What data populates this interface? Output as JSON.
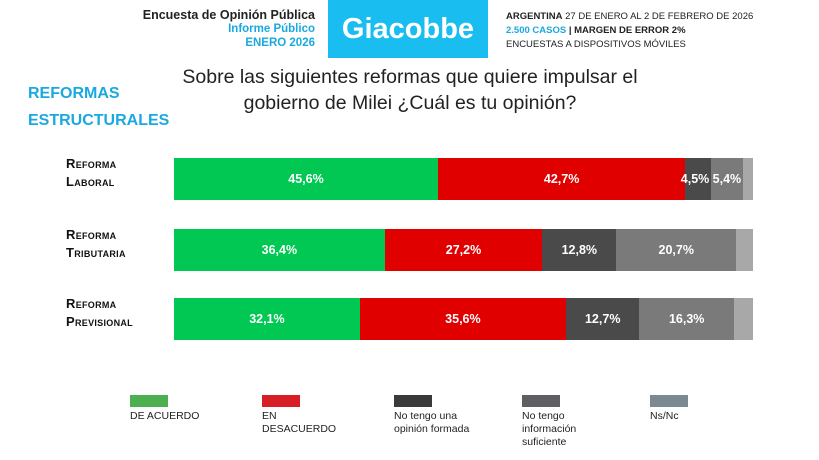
{
  "header": {
    "left": [
      "Encuesta de Opinión Pública",
      "Informe Público",
      "ENERO 2026"
    ],
    "logo": "Giacobbe",
    "right": {
      "country": "ARGENTINA",
      "dates": "27 DE ENERO AL 2 DE FEBRERO DE 2026",
      "cases": "2.500 CASOS",
      "sep": " | ",
      "margin": "MARGEN DE ERROR 2%",
      "method": "ENCUESTAS A DISPOSITIVOS MÓVILES"
    }
  },
  "section": [
    "REFORMAS",
    "ESTRUCTURALES"
  ],
  "chart_data": {
    "type": "bar",
    "orientation": "horizontal",
    "stacked": true,
    "title": "Sobre las siguientes reformas que quiere impulsar el gobierno de Milei ¿Cuál es tu opinión?",
    "categories": [
      [
        "Reforma",
        "Laboral"
      ],
      [
        "Reforma",
        "Tributaria"
      ],
      [
        "Reforma",
        "Previsional"
      ]
    ],
    "series": [
      {
        "name": "DE ACUERDO",
        "color": "#00c853",
        "values": [
          45.6,
          36.4,
          32.1
        ],
        "labels": [
          "45,6%",
          "36,4%",
          "32,1%"
        ]
      },
      {
        "name": "EN DESACUERDO",
        "color": "#e00000",
        "values": [
          42.7,
          27.2,
          35.6
        ],
        "labels": [
          "42,7%",
          "27,2%",
          "35,6%"
        ]
      },
      {
        "name": "No tengo una opinión formada",
        "color": "#4a4a4a",
        "values": [
          4.5,
          12.8,
          12.7
        ],
        "labels": [
          "4,5%",
          "12,8%",
          "12,7%"
        ]
      },
      {
        "name": "No tengo información suficiente",
        "color": "#7a7a7a",
        "values": [
          5.4,
          20.7,
          16.3
        ],
        "labels": [
          "5,4%",
          "20,7%",
          "16,3%"
        ]
      },
      {
        "name": "Ns/Nc",
        "color": "#a8a8a8",
        "values": [
          1.8,
          2.9,
          3.3
        ],
        "labels": [
          "",
          "",
          ""
        ]
      }
    ],
    "legend_colors": [
      "#4caf50",
      "#d81f26",
      "#3a3a3a",
      "#5f5f63",
      "#7b8a91"
    ],
    "legend_placement": "bottom",
    "xlim": [
      0,
      100
    ]
  }
}
